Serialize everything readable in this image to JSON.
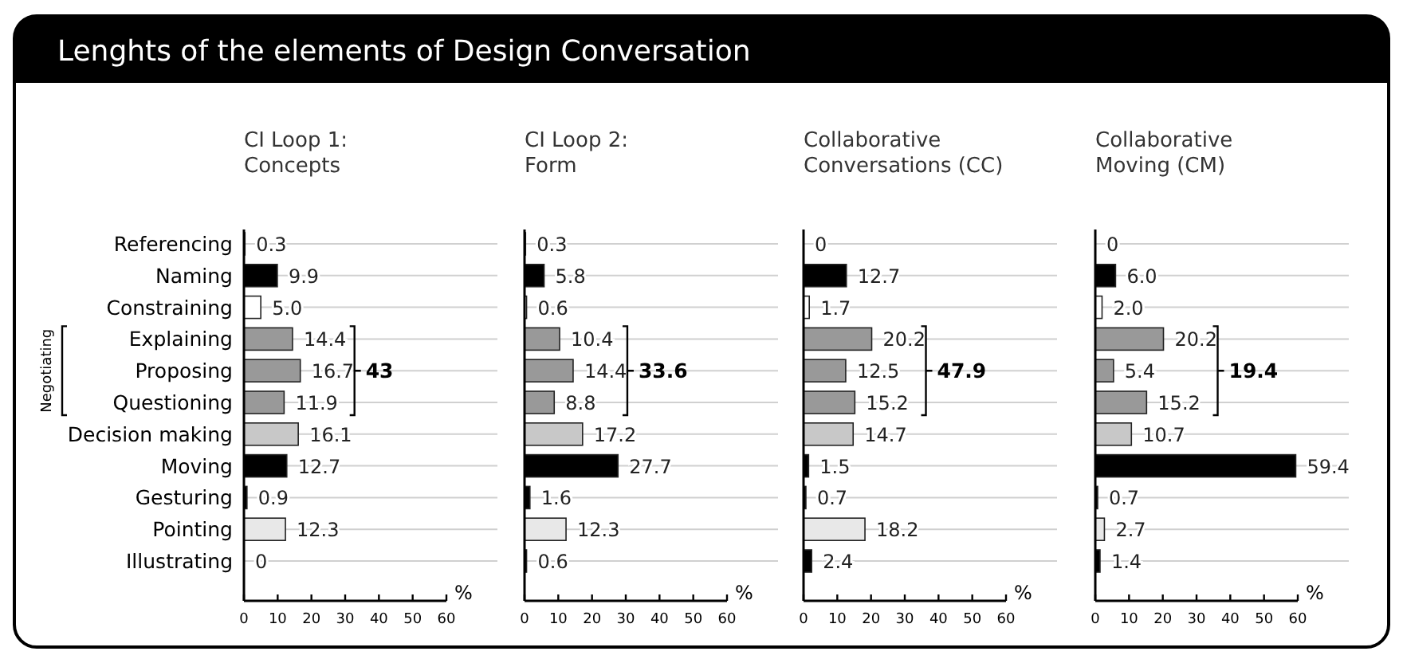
{
  "chart_data": [
    {
      "type": "bar",
      "orientation": "horizontal",
      "title": "Lenghts of the elements of Design Conversation",
      "subtitle": "CI Loop 1: Concepts",
      "ylabel": "Negotiating",
      "xlabel": "%",
      "categories": [
        "Referencing",
        "Naming",
        "Constraining",
        "Explaining",
        "Proposing",
        "Questioning",
        "Decision making",
        "Moving",
        "Gesturing",
        "Pointing",
        "Illustrating"
      ],
      "values": [
        0.3,
        9.9,
        5.0,
        14.4,
        16.7,
        11.9,
        16.1,
        12.7,
        0.9,
        12.3,
        0
      ],
      "value_labels": [
        "0.3",
        "9.9",
        "5.0",
        "14.4",
        "16.7",
        "11.9",
        "16.1",
        "12.7",
        "0.9",
        "12.3",
        "0"
      ],
      "colors": [
        "#000000",
        "#000000",
        "#ffffff",
        "#999999",
        "#999999",
        "#999999",
        "#c8c8c8",
        "#000000",
        "#000000",
        "#e8e8e8",
        "#000000"
      ],
      "xlim": [
        0,
        60
      ],
      "xticks": [
        0,
        10,
        20,
        30,
        40,
        50,
        60
      ],
      "grid": "y",
      "annotations": [
        "43"
      ]
    },
    {
      "type": "bar",
      "orientation": "horizontal",
      "subtitle": "CI Loop 2: Form",
      "xlabel": "%",
      "tick_labels": "x",
      "categories": [
        null,
        null,
        null,
        null,
        null,
        null,
        null,
        null,
        null,
        null,
        null
      ],
      "values": [
        0.3,
        5.8,
        0.6,
        10.4,
        14.4,
        8.8,
        17.2,
        27.7,
        1.6,
        12.3,
        0.6
      ],
      "value_labels": [
        "0.3",
        "5.8",
        "0.6",
        "10.4",
        "14.4",
        "8.8",
        "17.2",
        "27.7",
        "1.6",
        "12.3",
        "0.6"
      ],
      "colors": [
        "#000000",
        "#000000",
        "#ffffff",
        "#999999",
        "#999999",
        "#999999",
        "#c8c8c8",
        "#000000",
        "#000000",
        "#e8e8e8",
        "#000000"
      ],
      "xlim": [
        0,
        60
      ],
      "xticks": [
        0,
        10,
        20,
        30,
        40,
        50,
        60
      ],
      "grid": "y",
      "annotations": [
        "33.6"
      ]
    },
    {
      "type": "bar",
      "orientation": "horizontal",
      "subtitle": "Collaborative Conversations (CC)",
      "xlabel": "%",
      "tick_labels": "x",
      "categories": [
        null,
        null,
        null,
        null,
        null,
        null,
        null,
        null,
        null,
        null,
        null
      ],
      "values": [
        0,
        12.7,
        1.7,
        20.2,
        12.5,
        15.2,
        14.7,
        1.5,
        0.7,
        18.2,
        2.4
      ],
      "value_labels": [
        "0",
        "12.7",
        "1.7",
        "20.2",
        "12.5",
        "15.2",
        "14.7",
        "1.5",
        "0.7",
        "18.2",
        "2.4"
      ],
      "colors": [
        "#000000",
        "#000000",
        "#ffffff",
        "#999999",
        "#999999",
        "#999999",
        "#c8c8c8",
        "#000000",
        "#000000",
        "#e8e8e8",
        "#000000"
      ],
      "xlim": [
        0,
        60
      ],
      "xticks": [
        0,
        10,
        20,
        30,
        40,
        50,
        60
      ],
      "grid": "y",
      "annotations": [
        "47.9"
      ]
    },
    {
      "type": "bar",
      "orientation": "horizontal",
      "subtitle": "Collaborative Moving (CM)",
      "xlabel": "%",
      "tick_labels": "x",
      "categories": [
        null,
        null,
        null,
        null,
        null,
        null,
        null,
        null,
        null,
        null,
        null
      ],
      "values": [
        0,
        6.0,
        2.0,
        20.2,
        5.4,
        15.2,
        10.7,
        59.4,
        0.7,
        2.7,
        1.4
      ],
      "value_labels": [
        "0",
        "6.0",
        "2.0",
        "20.2",
        "5.4",
        "15.2",
        "10.7",
        "59.4",
        "0.7",
        "2.7",
        "1.4"
      ],
      "colors": [
        "#000000",
        "#000000",
        "#ffffff",
        "#999999",
        "#999999",
        "#999999",
        "#c8c8c8",
        "#000000",
        "#000000",
        "#e8e8e8",
        "#000000"
      ],
      "xlim": [
        0,
        60
      ],
      "xticks": [
        0,
        10,
        20,
        30,
        40,
        50,
        60
      ],
      "grid": "y",
      "annotations": [
        "19.4"
      ]
    }
  ]
}
